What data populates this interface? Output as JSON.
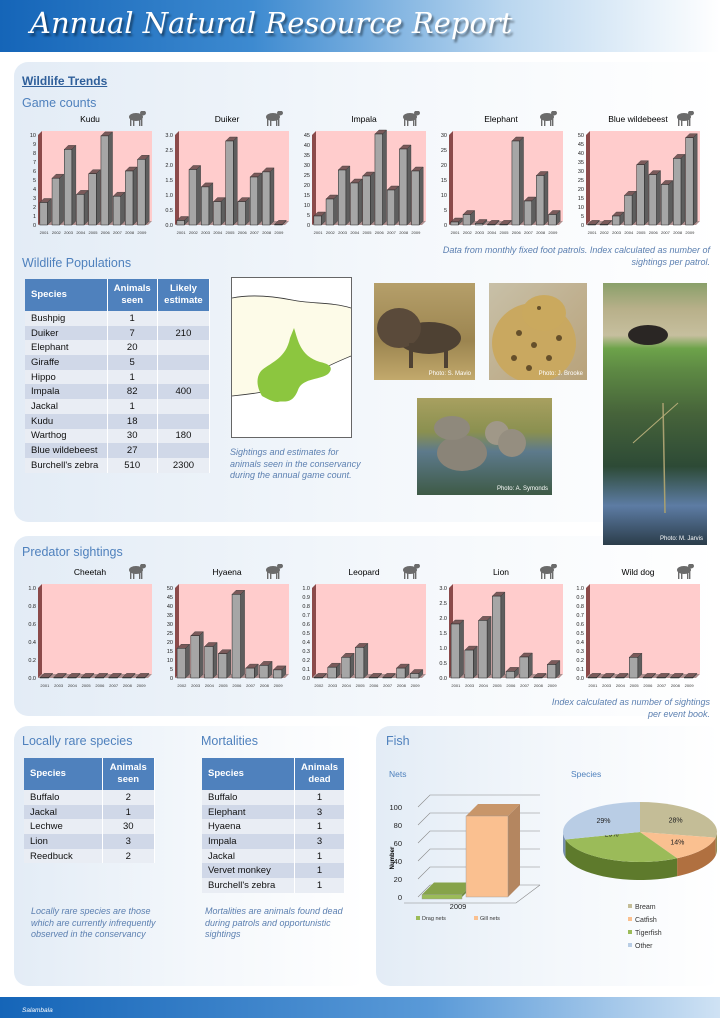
{
  "header": {
    "title": "Annual Natural Resource Report"
  },
  "wildlife": {
    "heading": "Wildlife Trends",
    "game_counts": "Game counts",
    "game_caption": "Data from monthly fixed foot patrols. Index calculated as number of sightings per patrol.",
    "populations_heading": "Wildlife Populations",
    "populations_table": {
      "headers": [
        "Species",
        "Animals seen",
        "Likely estimate"
      ],
      "rows": [
        [
          "Bushpig",
          "1",
          ""
        ],
        [
          "Duiker",
          "7",
          "210"
        ],
        [
          "Elephant",
          "20",
          ""
        ],
        [
          "Giraffe",
          "5",
          ""
        ],
        [
          "Hippo",
          "1",
          ""
        ],
        [
          "Impala",
          "82",
          "400"
        ],
        [
          "Jackal",
          "1",
          ""
        ],
        [
          "Kudu",
          "18",
          ""
        ],
        [
          "Warthog",
          "30",
          "180"
        ],
        [
          "Blue wildebeest",
          "27",
          ""
        ],
        [
          "Burchell's zebra",
          "510",
          "2300"
        ]
      ]
    },
    "map_caption": "Sightings and estimates for animals seen in the conservancy during the annual game count.",
    "photos": [
      {
        "subject": "buffalo",
        "credit": "Photo: S. Mavio"
      },
      {
        "subject": "leopard",
        "credit": "Photo: J. Brooke"
      },
      {
        "subject": "elephants",
        "credit": "Photo: A. Symonds"
      },
      {
        "subject": "buffalo-wetland",
        "credit": "Photo: M. Jarvis"
      }
    ]
  },
  "predators": {
    "heading": "Predator sightings",
    "caption": "Index calculated as number of sightings per event book."
  },
  "rare": {
    "heading": "Locally rare species",
    "table": {
      "headers": [
        "Species",
        "Animals seen"
      ],
      "rows": [
        [
          "Buffalo",
          "2"
        ],
        [
          "Jackal",
          "1"
        ],
        [
          "Lechwe",
          "30"
        ],
        [
          "Lion",
          "3"
        ],
        [
          "Reedbuck",
          "2"
        ]
      ]
    },
    "caption": "Locally rare species are those which are currently infrequently observed in the conservancy"
  },
  "mortalities": {
    "heading": "Mortalities",
    "table": {
      "headers": [
        "Species",
        "Animals dead"
      ],
      "rows": [
        [
          "Buffalo",
          "1"
        ],
        [
          "Elephant",
          "3"
        ],
        [
          "Hyaena",
          "1"
        ],
        [
          "Impala",
          "3"
        ],
        [
          "Jackal",
          "1"
        ],
        [
          "Vervet monkey",
          "1"
        ],
        [
          "Burchell's zebra",
          "1"
        ]
      ]
    },
    "caption": "Mortalities are animals found dead during patrols and opportunistic sightings"
  },
  "fish": {
    "heading": "Fish",
    "nets_title": "Nets",
    "species_title": "Species"
  },
  "footer": {
    "text": "Salambala"
  },
  "colors": {
    "bar": "#a6a6a6",
    "plot_bg": "#ffcccc",
    "header": "#4f81bd",
    "map_area": "#8cc63f"
  },
  "chart_data": [
    {
      "type": "bar",
      "group": "game",
      "title": "Kudu",
      "icon": "kudu-icon",
      "x": [
        "2001",
        "2002",
        "2003",
        "2004",
        "2005",
        "2006",
        "2007",
        "2008",
        "2009"
      ],
      "values": [
        2.5,
        5.2,
        8.4,
        3.4,
        5.7,
        9.9,
        3.2,
        6,
        7.3
      ],
      "ylim": [
        0,
        10
      ],
      "yticks": [
        "0",
        "1",
        "2",
        "3",
        "4",
        "5",
        "6",
        "7",
        "8",
        "9",
        "10"
      ]
    },
    {
      "type": "bar",
      "group": "game",
      "title": "Duiker",
      "icon": "duiker-icon",
      "x": [
        "2001",
        "2002",
        "2003",
        "2004",
        "2005",
        "2006",
        "2007",
        "2008",
        "2009"
      ],
      "values": [
        0.15,
        1.85,
        1.27,
        0.78,
        2.8,
        0.78,
        1.6,
        1.77,
        0
      ],
      "ylim": [
        0,
        3
      ],
      "yticks": [
        "0.0",
        "0.5",
        "1.0",
        "1.5",
        "2.0",
        "2.5",
        "3.0"
      ]
    },
    {
      "type": "bar",
      "group": "game",
      "title": "Impala",
      "icon": "impala-icon",
      "x": [
        "2001",
        "2002",
        "2003",
        "2004",
        "2005",
        "2006",
        "2007",
        "2008",
        "2009"
      ],
      "values": [
        4.5,
        13,
        27.5,
        21,
        24.5,
        45.5,
        17.5,
        38,
        27
      ],
      "ylim": [
        0,
        45
      ],
      "yticks": [
        "0",
        "5",
        "10",
        "15",
        "20",
        "25",
        "30",
        "35",
        "40",
        "45"
      ]
    },
    {
      "type": "bar",
      "group": "game",
      "title": "Elephant",
      "icon": "elephant-icon",
      "x": [
        "2001",
        "2002",
        "2003",
        "2004",
        "2005",
        "2006",
        "2007",
        "2008",
        "2009"
      ],
      "values": [
        1,
        3.5,
        0.5,
        0,
        0,
        28,
        8,
        16.5,
        3.5
      ],
      "ylim": [
        0,
        30
      ],
      "yticks": [
        "0",
        "5",
        "10",
        "15",
        "20",
        "25",
        "30"
      ]
    },
    {
      "type": "bar",
      "group": "game",
      "title": "Blue wildebeest",
      "icon": "wildebeest-icon",
      "x": [
        "2001",
        "2002",
        "2003",
        "2004",
        "2005",
        "2006",
        "2007",
        "2008",
        "2009"
      ],
      "values": [
        0,
        0,
        5,
        16.5,
        33.5,
        28,
        22.5,
        37,
        48.5
      ],
      "ylim": [
        0,
        50
      ],
      "yticks": [
        "0",
        "5",
        "10",
        "15",
        "20",
        "25",
        "30",
        "35",
        "40",
        "45",
        "50"
      ]
    },
    {
      "type": "bar",
      "group": "predator",
      "title": "Cheetah",
      "icon": "cheetah-icon",
      "x": [
        "2001",
        "2003",
        "2004",
        "2005",
        "2006",
        "2007",
        "2008",
        "2009"
      ],
      "values": [
        0,
        0,
        0,
        0,
        0,
        0,
        0,
        0
      ],
      "ylim": [
        0,
        1
      ],
      "yticks": [
        "0.0",
        "0.2",
        "0.4",
        "0.6",
        "0.8",
        "1.0"
      ]
    },
    {
      "type": "bar",
      "group": "predator",
      "title": "Hyaena",
      "icon": "hyaena-icon",
      "x": [
        "2002",
        "2003",
        "2004",
        "2005",
        "2006",
        "2007",
        "2008",
        "2009"
      ],
      "values": [
        16.5,
        23.5,
        17.5,
        13.5,
        46.5,
        5.5,
        7,
        4.5
      ],
      "ylim": [
        0,
        50
      ],
      "yticks": [
        "0",
        "5",
        "10",
        "15",
        "20",
        "25",
        "30",
        "35",
        "40",
        "45",
        "50"
      ]
    },
    {
      "type": "bar",
      "group": "predator",
      "title": "Leopard",
      "icon": "leopard-icon",
      "x": [
        "2002",
        "2003",
        "2004",
        "2005",
        "2006",
        "2007",
        "2008",
        "2009"
      ],
      "values": [
        0,
        0.12,
        0.23,
        0.34,
        0,
        0,
        0.11,
        0.05
      ],
      "ylim": [
        0,
        1
      ],
      "yticks": [
        "0.0",
        "0.1",
        "0.2",
        "0.3",
        "0.4",
        "0.5",
        "0.6",
        "0.7",
        "0.8",
        "0.9",
        "1.0"
      ]
    },
    {
      "type": "bar",
      "group": "predator",
      "title": "Lion",
      "icon": "lion-icon",
      "x": [
        "2001",
        "2003",
        "2004",
        "2005",
        "2006",
        "2007",
        "2008",
        "2009"
      ],
      "values": [
        1.8,
        0.93,
        1.92,
        2.73,
        0.22,
        0.7,
        0,
        0.45
      ],
      "ylim": [
        0,
        3
      ],
      "yticks": [
        "0.0",
        "0.5",
        "1.0",
        "1.5",
        "2.0",
        "2.5",
        "3.0"
      ]
    },
    {
      "type": "bar",
      "group": "predator",
      "title": "Wild dog",
      "icon": "wild-dog-icon",
      "x": [
        "2001",
        "2003",
        "2004",
        "2005",
        "2006",
        "2007",
        "2008",
        "2009"
      ],
      "values": [
        0,
        0,
        0,
        0.23,
        0,
        0,
        0,
        0
      ],
      "ylim": [
        0,
        1
      ],
      "yticks": [
        "0.0",
        "0.1",
        "0.2",
        "0.3",
        "0.4",
        "0.5",
        "0.6",
        "0.7",
        "0.8",
        "0.9",
        "1.0"
      ]
    },
    {
      "type": "bar",
      "group": "fish-nets",
      "title": "Nets",
      "ylabel": "Number",
      "categories": [
        "2009"
      ],
      "series": [
        {
          "name": "Drag nets",
          "values": [
            5
          ],
          "color": "#9bbb59"
        },
        {
          "name": "Gill nets",
          "values": [
            90
          ],
          "color": "#fac090"
        }
      ],
      "ylim": [
        0,
        100
      ],
      "yticks": [
        "0",
        "20",
        "40",
        "60",
        "80",
        "100"
      ]
    },
    {
      "type": "pie",
      "group": "fish-species",
      "title": "Species",
      "slices": [
        {
          "name": "Bream",
          "value": 28,
          "label": "28%",
          "color": "#c4bd97"
        },
        {
          "name": "Catfish",
          "value": 14,
          "label": "14%",
          "color": "#fac090"
        },
        {
          "name": "Tigerfish",
          "value": 29,
          "label": "29%",
          "color": "#9bbb59"
        },
        {
          "name": "Other",
          "value": 29,
          "label": "29%",
          "color": "#b9cde5"
        }
      ]
    }
  ]
}
